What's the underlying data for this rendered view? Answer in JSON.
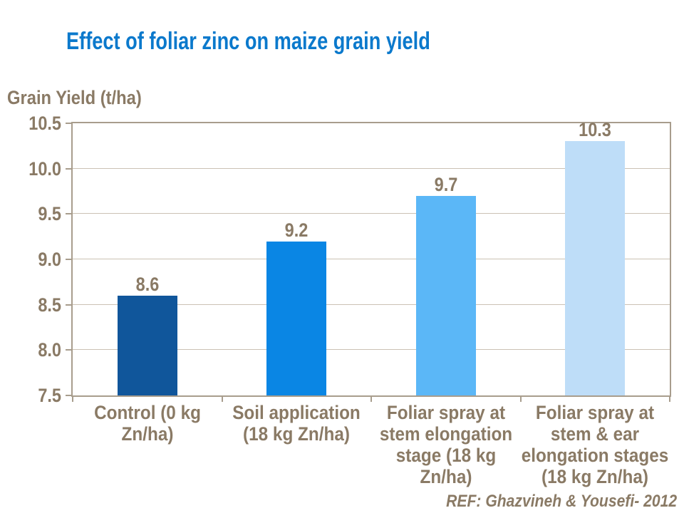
{
  "slide": {
    "background": "#FFFFFF",
    "title_color": "#0B79CC",
    "text_color": "#8A7A65",
    "reference": "REF: Ghazvineh & Yousefi- 2012"
  },
  "chart_data": {
    "type": "bar",
    "title": "Effect of foliar zinc on maize grain yield",
    "ylabel": "Grain Yield (t/ha)",
    "xlabel": "",
    "categories": [
      "Control (0 kg Zn/ha)",
      "Soil application (18 kg Zn/ha)",
      "Foliar spray at stem elongation stage (18 kg Zn/ha)",
      "Foliar spray at stem & ear elongation stages (18 kg Zn/ha)"
    ],
    "category_lines": [
      [
        "Control (0 kg",
        "Zn/ha)"
      ],
      [
        "Soil application",
        "(18 kg Zn/ha)"
      ],
      [
        "Foliar spray at",
        "stem elongation",
        "stage (18 kg",
        "Zn/ha)"
      ],
      [
        "Foliar spray at",
        "stem & ear",
        "elongation stages",
        "(18 kg Zn/ha)"
      ]
    ],
    "values": [
      8.6,
      9.2,
      9.7,
      10.3
    ],
    "data_labels": [
      "8.6",
      "9.2",
      "9.7",
      "10.3"
    ],
    "ylim": [
      7.5,
      10.5
    ],
    "yticks": [
      "10.5",
      "10.0",
      "9.5",
      "9.0",
      "8.5",
      "8.0",
      "7.5"
    ],
    "grid": true,
    "legend": false,
    "bar_colors": [
      "#10569B",
      "#0A86E4",
      "#5BB7F7",
      "#BEDDF8"
    ],
    "axis_color": "#A89D8D",
    "gridline_color": "#CBC1B4",
    "label_color": "#8A7A65"
  }
}
